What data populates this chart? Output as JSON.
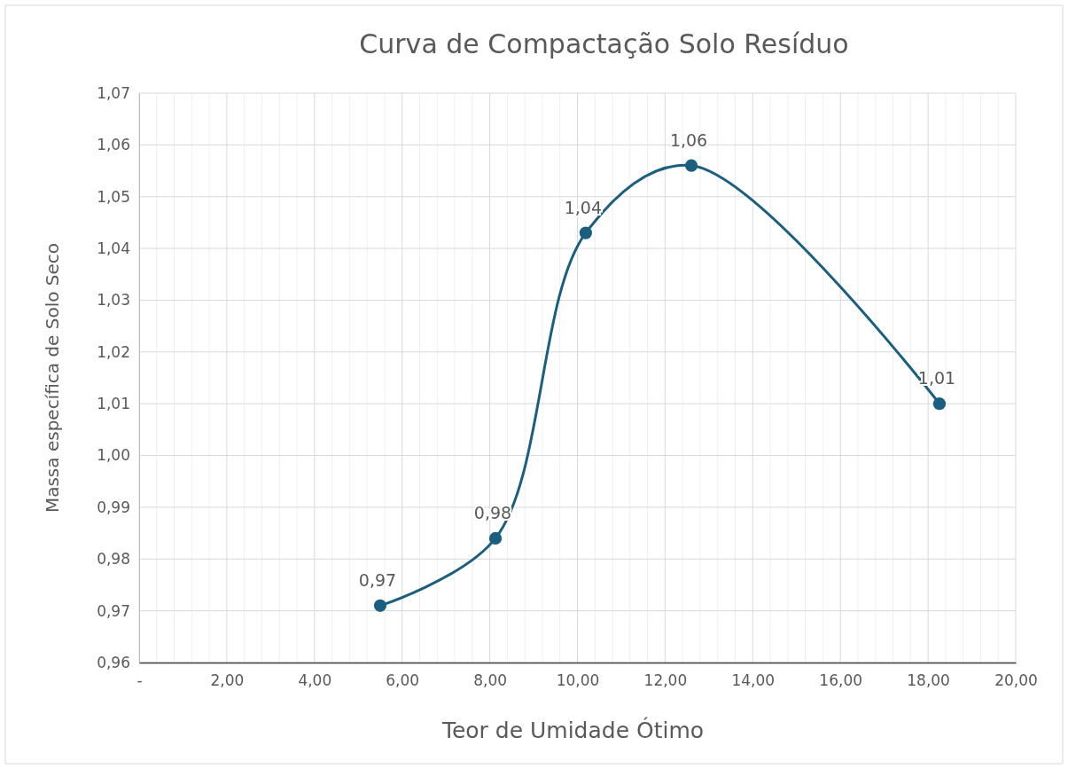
{
  "chart_data": {
    "type": "line",
    "title": "Curva de Compactação Solo Resíduo",
    "xlabel": "Teor de Umidade Ótimo",
    "ylabel": "Massa específica de Solo Seco",
    "x": [
      5.5,
      8.13,
      10.19,
      12.6,
      18.26
    ],
    "series": [
      {
        "color": "#1a5f7f",
        "values": [
          0.971,
          0.984,
          1.043,
          1.056,
          1.01
        ],
        "value_labels": [
          "0,97",
          "0,98",
          "1,04",
          "1,06",
          "1,01"
        ]
      }
    ],
    "xlim": [
      0,
      20
    ],
    "ylim": [
      0.96,
      1.07
    ],
    "xticks": [
      {
        "value": 0,
        "label": "-"
      },
      {
        "value": 2,
        "label": "2,00"
      },
      {
        "value": 4,
        "label": "4,00"
      },
      {
        "value": 6,
        "label": "6,00"
      },
      {
        "value": 8,
        "label": "8,00"
      },
      {
        "value": 10,
        "label": "10,00"
      },
      {
        "value": 12,
        "label": "12,00"
      },
      {
        "value": 14,
        "label": "14,00"
      },
      {
        "value": 16,
        "label": "16,00"
      },
      {
        "value": 18,
        "label": "18,00"
      },
      {
        "value": 20,
        "label": "20,00"
      }
    ],
    "yticks": [
      {
        "value": 0.96,
        "label": "0,96"
      },
      {
        "value": 0.97,
        "label": "0,97"
      },
      {
        "value": 0.98,
        "label": "0,98"
      },
      {
        "value": 0.99,
        "label": "0,99"
      },
      {
        "value": 1.0,
        "label": "1,00"
      },
      {
        "value": 1.01,
        "label": "1,01"
      },
      {
        "value": 1.02,
        "label": "1,02"
      },
      {
        "value": 1.03,
        "label": "1,03"
      },
      {
        "value": 1.04,
        "label": "1,04"
      },
      {
        "value": 1.05,
        "label": "1,05"
      },
      {
        "value": 1.06,
        "label": "1,06"
      },
      {
        "value": 1.07,
        "label": "1,07"
      }
    ],
    "grid": true,
    "marker": "circle",
    "line_style": "solid"
  }
}
